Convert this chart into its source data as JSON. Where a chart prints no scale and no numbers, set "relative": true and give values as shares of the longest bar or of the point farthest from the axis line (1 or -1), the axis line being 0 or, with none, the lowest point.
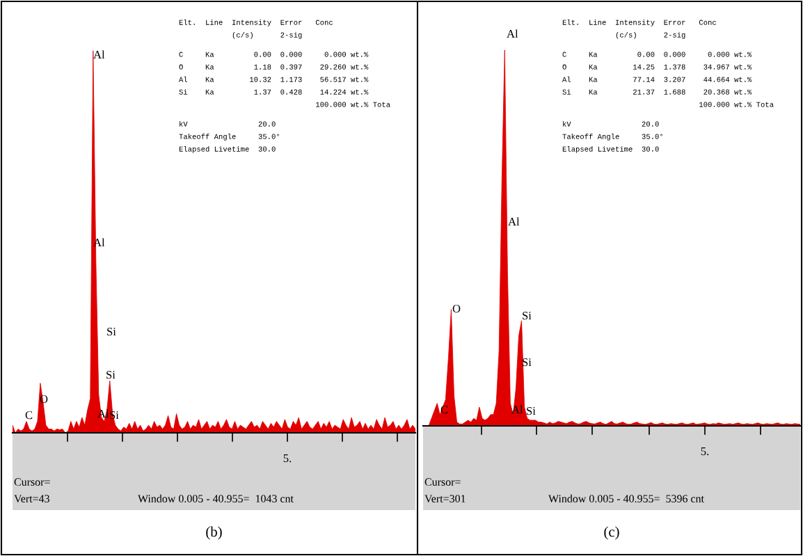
{
  "chart_data": [
    {
      "type": "area",
      "title": "(b)",
      "relative": true,
      "color": "#e00000",
      "categories": [
        null,
        null,
        null,
        null,
        null,
        null,
        null,
        null,
        null,
        null,
        null,
        null,
        null,
        null,
        null,
        null,
        null,
        null,
        null,
        null,
        null,
        null,
        null,
        null,
        null,
        null,
        null,
        null,
        null,
        null,
        null,
        null,
        null,
        null,
        null,
        null,
        null,
        null,
        null,
        null,
        null,
        null,
        null,
        null,
        null,
        null,
        null,
        null,
        null,
        null,
        null,
        null,
        null,
        null,
        null,
        null,
        null,
        null,
        null,
        null,
        null,
        null,
        null,
        null,
        null,
        null,
        null,
        null,
        null,
        null,
        null,
        null,
        null,
        null,
        null,
        null,
        null,
        null,
        null,
        null,
        null,
        null,
        null,
        null,
        null,
        null,
        null,
        null,
        null,
        null,
        null,
        null,
        null,
        null,
        null,
        null,
        null,
        null,
        null,
        null,
        null,
        null,
        null,
        null,
        null,
        null,
        null,
        null,
        null,
        null,
        null,
        null,
        null,
        null,
        null,
        null,
        null,
        null,
        null,
        null,
        null,
        null,
        null,
        null,
        null,
        null,
        null,
        null,
        null,
        null,
        null,
        null,
        null,
        null,
        null,
        null,
        null,
        null,
        null,
        null,
        null,
        null,
        null,
        null,
        null,
        null
      ],
      "values": [
        0.02,
        0.0,
        0.01,
        0.005,
        0.01,
        0.03,
        0.01,
        0.005,
        0.01,
        0.03,
        0.13,
        0.08,
        0.02,
        0.01,
        0.01,
        0.005,
        0.01,
        0.008,
        0.01,
        0.0,
        0.005,
        0.03,
        0.01,
        0.03,
        0.015,
        0.04,
        0.02,
        0.06,
        0.09,
        1.0,
        0.45,
        0.1,
        0.04,
        0.03,
        0.06,
        0.136,
        0.05,
        0.02,
        0.01,
        0.005,
        0.015,
        0.01,
        0.025,
        0.01,
        0.03,
        0.01,
        0.02,
        0.005,
        0.01,
        0.02,
        0.01,
        0.03,
        0.015,
        0.02,
        0.01,
        0.02,
        0.045,
        0.015,
        0.01,
        0.05,
        0.02,
        0.01,
        0.015,
        0.03,
        0.01,
        0.02,
        0.015,
        0.035,
        0.01,
        0.02,
        0.03,
        0.01,
        0.02,
        0.015,
        0.03,
        0.01,
        0.02,
        0.035,
        0.015,
        0.01,
        0.03,
        0.01,
        0.02,
        0.015,
        0.01,
        0.02,
        0.03,
        0.015,
        0.02,
        0.01,
        0.03,
        0.02,
        0.01,
        0.025,
        0.015,
        0.03,
        0.02,
        0.01,
        0.035,
        0.015,
        0.01,
        0.03,
        0.02,
        0.04,
        0.01,
        0.02,
        0.03,
        0.015,
        0.01,
        0.02,
        0.03,
        0.01,
        0.025,
        0.015,
        0.03,
        0.01,
        0.02,
        0.015,
        0.01,
        0.035,
        0.02,
        0.01,
        0.04,
        0.015,
        0.02,
        0.03,
        0.01,
        0.025,
        0.01,
        0.02,
        0.01,
        0.035,
        0.02,
        0.01,
        0.04,
        0.015,
        0.02,
        0.03,
        0.01,
        0.02,
        0.01,
        0.02,
        0.035,
        0.01,
        0.02,
        0.01
      ],
      "annotations": [
        "Elt.  Line  Intensity  Error   Conc",
        "            (c/s)      2-sig",
        "C     Ka         0.00  0.000     0.000 wt.%",
        "O     Ka         1.18  0.397    29.260 wt.%",
        "Al    Ka        10.32  1.173    56.517 wt.%",
        "Si    Ka         1.37  0.428    14.224 wt.%",
        "                               100.000 wt.% Tota",
        "kV                20.0",
        "Takeoff Angle     35.0°",
        "Elapsed Livetime  30.0",
        "Cursor=",
        "Vert=43",
        "Window 0.005 - 40.955=  1043 cnt",
        "Al",
        "Al",
        "Si",
        "Si",
        "O",
        "C",
        "Al",
        "Si",
        "5."
      ]
    },
    {
      "type": "area",
      "title": "(c)",
      "relative": true,
      "color": "#e00000",
      "categories": [
        null,
        null,
        null,
        null,
        null,
        null,
        null,
        null,
        null,
        null,
        null,
        null,
        null,
        null,
        null,
        null,
        null,
        null,
        null,
        null,
        null,
        null,
        null,
        null,
        null,
        null,
        null,
        null,
        null,
        null,
        null,
        null,
        null,
        null,
        null,
        null,
        null,
        null,
        null,
        null,
        null,
        null,
        null,
        null,
        null,
        null,
        null,
        null,
        null,
        null,
        null,
        null,
        null,
        null,
        null,
        null,
        null,
        null,
        null,
        null,
        null,
        null,
        null,
        null,
        null,
        null,
        null,
        null,
        null,
        null,
        null,
        null,
        null,
        null,
        null,
        null,
        null,
        null,
        null,
        null,
        null,
        null,
        null,
        null,
        null,
        null,
        null,
        null,
        null,
        null,
        null,
        null,
        null,
        null,
        null,
        null,
        null,
        null,
        null,
        null,
        null,
        null,
        null,
        null,
        null,
        null,
        null,
        null,
        null,
        null,
        null,
        null,
        null,
        null,
        null,
        null,
        null,
        null,
        null,
        null,
        null,
        null,
        null,
        null,
        null,
        null,
        null,
        null,
        null,
        null,
        null,
        null,
        null,
        null,
        null
      ],
      "values": [
        0.0,
        0.0,
        0.0,
        0.02,
        0.04,
        0.06,
        0.03,
        0.05,
        0.07,
        0.18,
        0.31,
        0.08,
        0.01,
        0.005,
        0.005,
        0.01,
        0.015,
        0.01,
        0.02,
        0.015,
        0.05,
        0.02,
        0.015,
        0.02,
        0.03,
        0.03,
        0.06,
        0.2,
        0.65,
        1.0,
        0.41,
        0.06,
        0.03,
        0.1,
        0.24,
        0.28,
        0.05,
        0.02,
        0.015,
        0.015,
        0.015,
        0.01,
        0.01,
        0.008,
        0.005,
        0.01,
        0.006,
        0.008,
        0.012,
        0.01,
        0.008,
        0.006,
        0.01,
        0.012,
        0.008,
        0.005,
        0.006,
        0.01,
        0.012,
        0.008,
        0.006,
        0.005,
        0.008,
        0.01,
        0.006,
        0.004,
        0.008,
        0.012,
        0.006,
        0.005,
        0.008,
        0.01,
        0.006,
        0.004,
        0.005,
        0.008,
        0.01,
        0.006,
        0.005,
        0.004,
        0.006,
        0.009,
        0.005,
        0.004,
        0.006,
        0.008,
        0.005,
        0.004,
        0.006,
        0.005,
        0.004,
        0.006,
        0.008,
        0.005,
        0.004,
        0.006,
        0.008,
        0.004,
        0.005,
        0.006,
        0.008,
        0.005,
        0.004,
        0.006,
        0.005,
        0.008,
        0.006,
        0.004,
        0.005,
        0.006,
        0.004,
        0.006,
        0.008,
        0.005,
        0.004,
        0.006,
        0.005,
        0.004,
        0.006,
        0.008,
        0.005,
        0.004,
        0.006,
        0.005,
        0.004,
        0.006,
        0.008,
        0.005,
        0.004,
        0.006,
        0.005,
        0.004,
        0.006,
        0.005,
        0.004
      ],
      "annotations": [
        "Elt.  Line  Intensity  Error   Conc",
        "            (c/s)      2-sig",
        "C     Ka         0.00  0.000     0.000 wt.%",
        "O     Ka        14.25  1.378    34.967 wt.%",
        "Al    Ka        77.14  3.207    44.664 wt.%",
        "Si    Ka        21.37  1.688    20.368 wt.%",
        "                               100.000 wt.% Tota",
        "kV                20.0",
        "Takeoff Angle     35.0°",
        "Elapsed Livetime  30.0",
        "Cursor=",
        "Vert=301",
        "Window 0.005 - 40.955=  5396 cnt",
        "Al",
        "Al",
        "O",
        "Si",
        "Si",
        "C",
        "Al",
        "Si",
        "5."
      ]
    }
  ]
}
